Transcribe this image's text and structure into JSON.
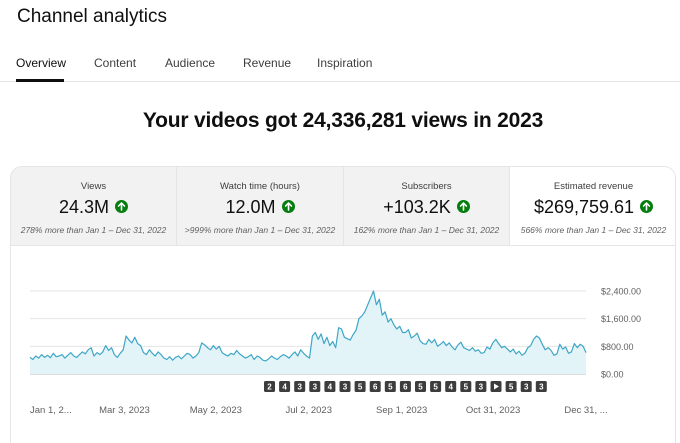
{
  "header": {
    "title": "Channel analytics"
  },
  "tabs": [
    {
      "label": "Overview",
      "active": true
    },
    {
      "label": "Content"
    },
    {
      "label": "Audience"
    },
    {
      "label": "Revenue"
    },
    {
      "label": "Inspiration"
    }
  ],
  "headline": "Your videos got 24,336,281 views in 2023",
  "metrics": [
    {
      "label": "Views",
      "value": "24.3M",
      "trend": "up-arrow-icon",
      "compare": "278% more than Jan 1 – Dec 31, 2022"
    },
    {
      "label": "Watch time (hours)",
      "value": "12.0M",
      "trend": "up-arrow-icon",
      "compare": ">999% more than Jan 1 – Dec 31, 2022"
    },
    {
      "label": "Subscribers",
      "value": "+103.2K",
      "trend": "up-arrow-icon",
      "compare": "162% more than Jan 1 – Dec 31, 2022"
    },
    {
      "label": "Estimated revenue",
      "value": "$269,759.61",
      "trend": "up-arrow-icon",
      "compare": "566% more than Jan 1 – Dec 31, 2022"
    }
  ],
  "colors": {
    "accent": "#065fd4",
    "line": "#3ea6c6",
    "fill": "#e3f4f9",
    "trend_up": "#067d0e"
  },
  "chart_data": {
    "type": "area",
    "series": [
      {
        "values": [
          480,
          420,
          520,
          460,
          560,
          480,
          540,
          470,
          600,
          500,
          520,
          560,
          460,
          540,
          620,
          520,
          480,
          560,
          640,
          580,
          700,
          760,
          520,
          620,
          560,
          640,
          820,
          680,
          760,
          560,
          480,
          600,
          700,
          1100,
          980,
          900,
          1060,
          880,
          820,
          620,
          560,
          700,
          600,
          520,
          640,
          560,
          460,
          420,
          500,
          400,
          480,
          520,
          440,
          520,
          600,
          560,
          460,
          520,
          620,
          900,
          840,
          760,
          700,
          820,
          720,
          800,
          620,
          560,
          520,
          600,
          560,
          680,
          580,
          520,
          460,
          500,
          560,
          420,
          520,
          480,
          400,
          380,
          440,
          520,
          460,
          420,
          500,
          560,
          520,
          460,
          560,
          640,
          520,
          700,
          600,
          520,
          460,
          1100,
          1200,
          1000,
          1160,
          880,
          1060,
          820,
          940,
          760,
          1340,
          1300,
          1060,
          1020,
          980,
          1140,
          1260,
          1600,
          1680,
          1800,
          2000,
          2200,
          2400,
          2000,
          2160,
          1700,
          1800,
          1500,
          1600,
          1420,
          1300,
          1380,
          1200,
          1200,
          1280,
          1040,
          1100,
          1180,
          960,
          880,
          860,
          1000,
          900,
          1000,
          800,
          860,
          940,
          820,
          900,
          780,
          700,
          840,
          920,
          760,
          720,
          680,
          760,
          660,
          700,
          600,
          620,
          780,
          720,
          900,
          1000,
          880,
          760,
          800,
          720,
          640,
          720,
          580,
          660,
          540,
          600,
          760,
          820,
          1000,
          1100,
          1040,
          860,
          700,
          760,
          680,
          540,
          580,
          860,
          720,
          780,
          600,
          640,
          880,
          760,
          860,
          800,
          620
        ],
        "color": "#3ea6c6"
      }
    ],
    "ytick_labels": [
      "$0.00",
      "$800.00",
      "$1,600.00",
      "$2,400.00"
    ],
    "yticks": [
      0,
      800,
      1600,
      2400
    ],
    "ylim": [
      0,
      2400
    ],
    "xtick_labels": [
      "Jan 1, 2...",
      "Mar 3, 2023",
      "May 2, 2023",
      "Jul 2, 2023",
      "Sep 1, 2023",
      "Oct 31, 2023",
      "Dec 31, ..."
    ],
    "xtick_positions": [
      0,
      62,
      122,
      183,
      244,
      304,
      365
    ],
    "x_range": [
      0,
      365
    ],
    "grid": true,
    "annotations": [
      "2",
      "4",
      "3",
      "3",
      "4",
      "3",
      "5",
      "6",
      "5",
      "6",
      "5",
      "5",
      "4",
      "5",
      "3",
      "play",
      "5",
      "3",
      "3"
    ]
  }
}
